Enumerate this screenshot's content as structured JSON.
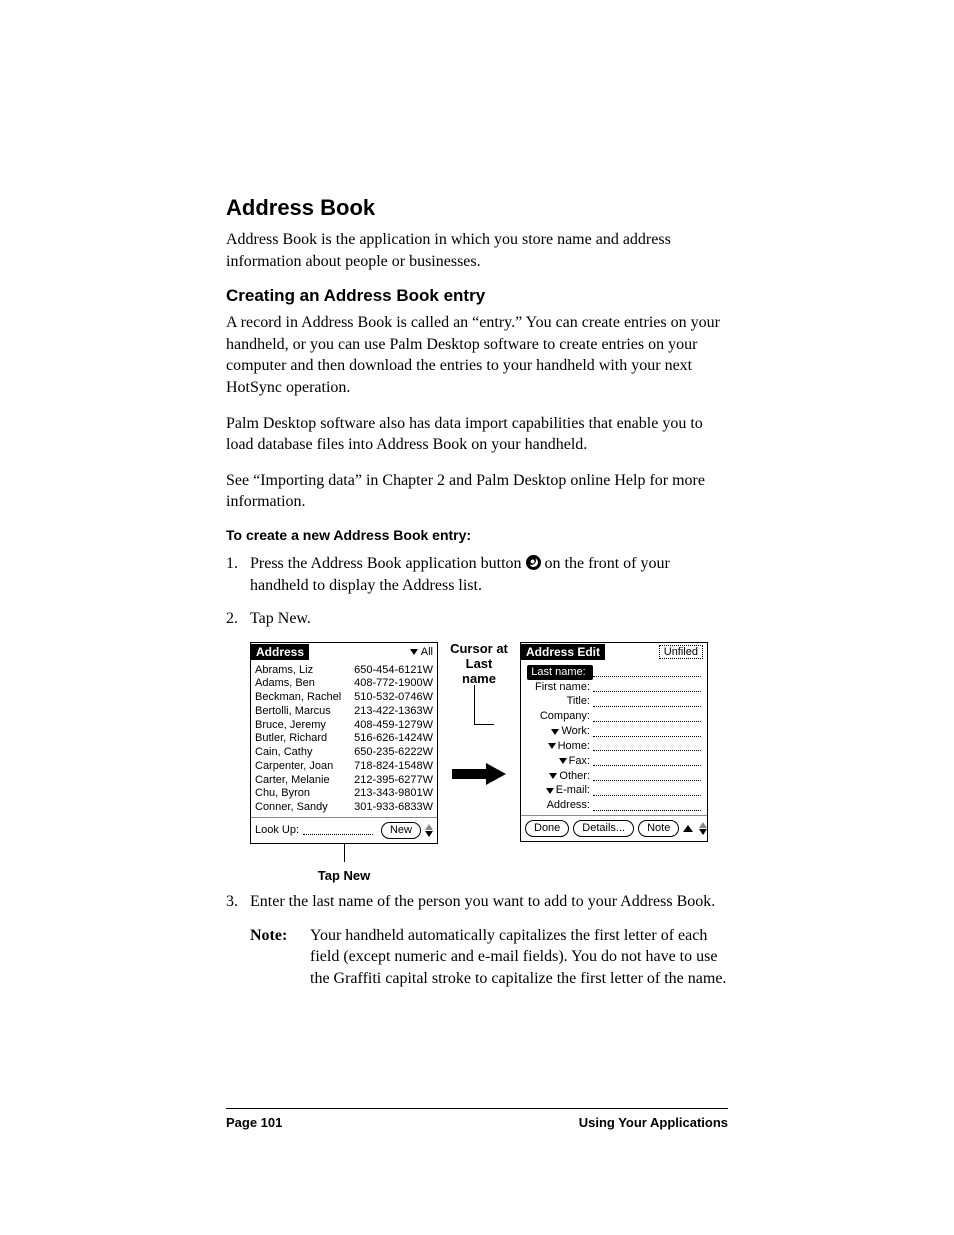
{
  "h1": "Address Book",
  "intro": "Address Book is the application in which you store name and address information about people or businesses.",
  "h2": "Creating an Address Book entry",
  "p1": "A record in Address Book is called an “entry.” You can create entries on your handheld, or you can use Palm Desktop software to create entries on your computer and then download the entries to your handheld with your next HotSync operation.",
  "p2": "Palm Desktop software also has data import capabilities that enable you to load database files into Address Book on your handheld.",
  "p3": "See “Importing data” in Chapter 2 and Palm Desktop online Help for more information.",
  "h3": "To create a new Address Book entry:",
  "steps": {
    "s1_a": "Press the Address Book application button ",
    "s1_b": " on the front of your handheld to display the Address list.",
    "s2": "Tap New.",
    "s3": "Enter the last name of the person you want to add to your Address Book."
  },
  "note_label": "Note:",
  "note_body": "Your handheld automatically capitalizes the first letter of each field (except numeric and e-mail fields). You do not have to use the Graffiti capital stroke to capitalize the first letter of the name.",
  "callout_cursor": "Cursor at Last name",
  "callout_tapnew": "Tap New",
  "footer_left": "Page 101",
  "footer_right": "Using Your Applications",
  "screen_left": {
    "title": "Address",
    "category": "All",
    "lookup_label": "Look Up:",
    "new_btn": "New",
    "rows": [
      {
        "name": "Abrams, Liz",
        "phone": "650-454-6121W"
      },
      {
        "name": "Adams, Ben",
        "phone": "408-772-1900W"
      },
      {
        "name": "Beckman, Rachel",
        "phone": "510-532-0746W"
      },
      {
        "name": "Bertolli, Marcus",
        "phone": "213-422-1363W"
      },
      {
        "name": "Bruce, Jeremy",
        "phone": "408-459-1279W"
      },
      {
        "name": "Butler, Richard",
        "phone": "516-626-1424W"
      },
      {
        "name": "Cain, Cathy",
        "phone": "650-235-6222W"
      },
      {
        "name": "Carpenter, Joan",
        "phone": "718-824-1548W"
      },
      {
        "name": "Carter, Melanie",
        "phone": "212-395-6277W"
      },
      {
        "name": "Chu, Byron",
        "phone": "213-343-9801W"
      },
      {
        "name": "Conner, Sandy",
        "phone": "301-933-6833W"
      }
    ]
  },
  "screen_right": {
    "title": "Address Edit",
    "category": "Unfiled",
    "done_btn": "Done",
    "details_btn": "Details...",
    "note_btn": "Note",
    "fields": [
      {
        "label": "Last name:",
        "hl": true,
        "tri": false
      },
      {
        "label": "First name:",
        "hl": false,
        "tri": false
      },
      {
        "label": "Title:",
        "hl": false,
        "tri": false
      },
      {
        "label": "Company:",
        "hl": false,
        "tri": false
      },
      {
        "label": "Work:",
        "hl": false,
        "tri": true
      },
      {
        "label": "Home:",
        "hl": false,
        "tri": true
      },
      {
        "label": "Fax:",
        "hl": false,
        "tri": true
      },
      {
        "label": "Other:",
        "hl": false,
        "tri": true
      },
      {
        "label": "E-mail:",
        "hl": false,
        "tri": true
      },
      {
        "label": "Address:",
        "hl": false,
        "tri": false
      }
    ]
  }
}
